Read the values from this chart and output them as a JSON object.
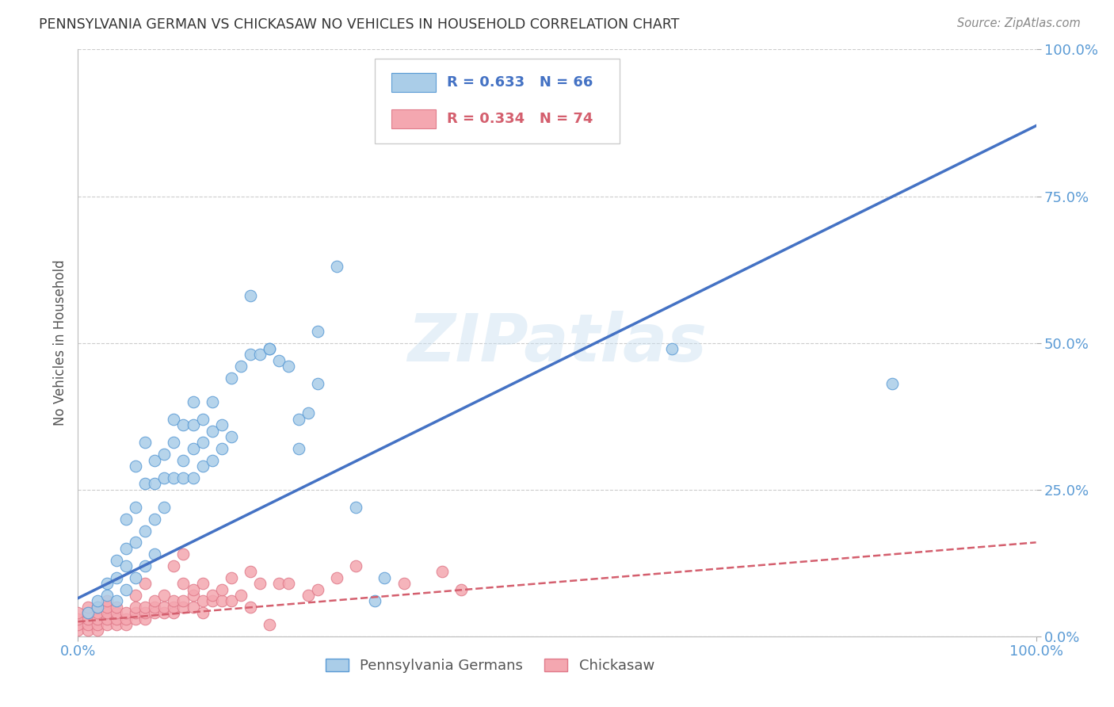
{
  "title": "PENNSYLVANIA GERMAN VS CHICKASAW NO VEHICLES IN HOUSEHOLD CORRELATION CHART",
  "source": "Source: ZipAtlas.com",
  "ylabel": "No Vehicles in Household",
  "xlim": [
    0.0,
    1.0
  ],
  "ylim": [
    0.0,
    1.0
  ],
  "xtick_labels": [
    "0.0%",
    "100.0%"
  ],
  "ytick_labels": [
    "100.0%",
    "75.0%",
    "50.0%",
    "25.0%",
    "0.0%"
  ],
  "ytick_vals": [
    1.0,
    0.75,
    0.5,
    0.25,
    0.0
  ],
  "xtick_vals": [
    0.0,
    1.0
  ],
  "grid_color": "#cccccc",
  "background_color": "#ffffff",
  "watermark": "ZIPatlas",
  "blue_color": "#aacde8",
  "blue_edge_color": "#5b9bd5",
  "blue_line_color": "#4472c4",
  "pink_color": "#f4a7b0",
  "pink_edge_color": "#e07a8a",
  "pink_line_color": "#d45f6e",
  "blue_line_x": [
    0.0,
    1.0
  ],
  "blue_line_y": [
    0.065,
    0.87
  ],
  "pink_line_x": [
    0.0,
    1.0
  ],
  "pink_line_y": [
    0.025,
    0.16
  ],
  "title_color": "#333333",
  "source_color": "#888888",
  "tick_label_color": "#5b9bd5",
  "ylabel_color": "#555555",
  "legend_blue_r": "R = 0.633",
  "legend_blue_n": "N = 66",
  "legend_pink_r": "R = 0.334",
  "legend_pink_n": "N = 74",
  "legend_label1": "Pennsylvania Germans",
  "legend_label2": "Chickasaw",
  "blue_scatter": [
    [
      0.01,
      0.04
    ],
    [
      0.02,
      0.05
    ],
    [
      0.02,
      0.06
    ],
    [
      0.03,
      0.07
    ],
    [
      0.03,
      0.09
    ],
    [
      0.04,
      0.06
    ],
    [
      0.04,
      0.1
    ],
    [
      0.04,
      0.13
    ],
    [
      0.05,
      0.08
    ],
    [
      0.05,
      0.12
    ],
    [
      0.05,
      0.15
    ],
    [
      0.05,
      0.2
    ],
    [
      0.06,
      0.1
    ],
    [
      0.06,
      0.16
    ],
    [
      0.06,
      0.22
    ],
    [
      0.06,
      0.29
    ],
    [
      0.07,
      0.12
    ],
    [
      0.07,
      0.18
    ],
    [
      0.07,
      0.26
    ],
    [
      0.07,
      0.33
    ],
    [
      0.08,
      0.14
    ],
    [
      0.08,
      0.2
    ],
    [
      0.08,
      0.26
    ],
    [
      0.08,
      0.3
    ],
    [
      0.09,
      0.22
    ],
    [
      0.09,
      0.27
    ],
    [
      0.09,
      0.31
    ],
    [
      0.1,
      0.27
    ],
    [
      0.1,
      0.33
    ],
    [
      0.1,
      0.37
    ],
    [
      0.11,
      0.27
    ],
    [
      0.11,
      0.3
    ],
    [
      0.11,
      0.36
    ],
    [
      0.12,
      0.27
    ],
    [
      0.12,
      0.32
    ],
    [
      0.12,
      0.36
    ],
    [
      0.12,
      0.4
    ],
    [
      0.13,
      0.29
    ],
    [
      0.13,
      0.33
    ],
    [
      0.13,
      0.37
    ],
    [
      0.14,
      0.3
    ],
    [
      0.14,
      0.35
    ],
    [
      0.14,
      0.4
    ],
    [
      0.15,
      0.32
    ],
    [
      0.15,
      0.36
    ],
    [
      0.16,
      0.34
    ],
    [
      0.16,
      0.44
    ],
    [
      0.17,
      0.46
    ],
    [
      0.18,
      0.48
    ],
    [
      0.18,
      0.58
    ],
    [
      0.19,
      0.48
    ],
    [
      0.2,
      0.49
    ],
    [
      0.2,
      0.49
    ],
    [
      0.21,
      0.47
    ],
    [
      0.22,
      0.46
    ],
    [
      0.23,
      0.32
    ],
    [
      0.23,
      0.37
    ],
    [
      0.24,
      0.38
    ],
    [
      0.25,
      0.43
    ],
    [
      0.25,
      0.52
    ],
    [
      0.27,
      0.63
    ],
    [
      0.29,
      0.22
    ],
    [
      0.31,
      0.06
    ],
    [
      0.32,
      0.1
    ],
    [
      0.62,
      0.49
    ],
    [
      0.85,
      0.43
    ]
  ],
  "pink_scatter": [
    [
      0.0,
      0.01
    ],
    [
      0.0,
      0.02
    ],
    [
      0.0,
      0.03
    ],
    [
      0.0,
      0.04
    ],
    [
      0.01,
      0.01
    ],
    [
      0.01,
      0.02
    ],
    [
      0.01,
      0.03
    ],
    [
      0.01,
      0.04
    ],
    [
      0.01,
      0.05
    ],
    [
      0.02,
      0.01
    ],
    [
      0.02,
      0.02
    ],
    [
      0.02,
      0.03
    ],
    [
      0.02,
      0.04
    ],
    [
      0.02,
      0.05
    ],
    [
      0.03,
      0.02
    ],
    [
      0.03,
      0.03
    ],
    [
      0.03,
      0.04
    ],
    [
      0.03,
      0.05
    ],
    [
      0.03,
      0.06
    ],
    [
      0.04,
      0.02
    ],
    [
      0.04,
      0.03
    ],
    [
      0.04,
      0.04
    ],
    [
      0.04,
      0.05
    ],
    [
      0.05,
      0.02
    ],
    [
      0.05,
      0.03
    ],
    [
      0.05,
      0.04
    ],
    [
      0.06,
      0.03
    ],
    [
      0.06,
      0.04
    ],
    [
      0.06,
      0.05
    ],
    [
      0.06,
      0.07
    ],
    [
      0.07,
      0.03
    ],
    [
      0.07,
      0.04
    ],
    [
      0.07,
      0.05
    ],
    [
      0.07,
      0.09
    ],
    [
      0.08,
      0.04
    ],
    [
      0.08,
      0.05
    ],
    [
      0.08,
      0.06
    ],
    [
      0.09,
      0.04
    ],
    [
      0.09,
      0.05
    ],
    [
      0.09,
      0.07
    ],
    [
      0.1,
      0.04
    ],
    [
      0.1,
      0.05
    ],
    [
      0.1,
      0.06
    ],
    [
      0.1,
      0.12
    ],
    [
      0.11,
      0.05
    ],
    [
      0.11,
      0.06
    ],
    [
      0.11,
      0.09
    ],
    [
      0.11,
      0.14
    ],
    [
      0.12,
      0.05
    ],
    [
      0.12,
      0.07
    ],
    [
      0.12,
      0.08
    ],
    [
      0.13,
      0.04
    ],
    [
      0.13,
      0.06
    ],
    [
      0.13,
      0.09
    ],
    [
      0.14,
      0.06
    ],
    [
      0.14,
      0.07
    ],
    [
      0.15,
      0.06
    ],
    [
      0.15,
      0.08
    ],
    [
      0.16,
      0.06
    ],
    [
      0.16,
      0.1
    ],
    [
      0.17,
      0.07
    ],
    [
      0.18,
      0.05
    ],
    [
      0.18,
      0.11
    ],
    [
      0.19,
      0.09
    ],
    [
      0.2,
      0.02
    ],
    [
      0.21,
      0.09
    ],
    [
      0.22,
      0.09
    ],
    [
      0.24,
      0.07
    ],
    [
      0.25,
      0.08
    ],
    [
      0.27,
      0.1
    ],
    [
      0.29,
      0.12
    ],
    [
      0.34,
      0.09
    ],
    [
      0.38,
      0.11
    ],
    [
      0.4,
      0.08
    ]
  ]
}
